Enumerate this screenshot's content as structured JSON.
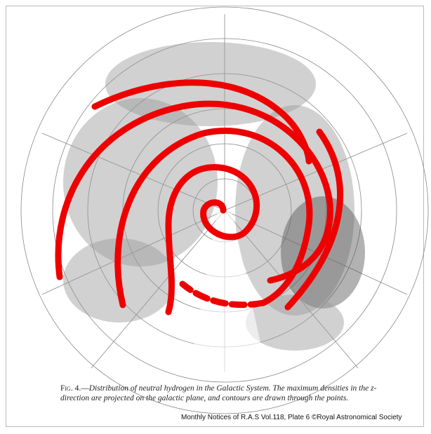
{
  "figure": {
    "caption_label": "Fig. 4.—",
    "caption_text": "Distribution of neutral hydrogen in the Galactic System.  The maximum densities in the z-direction are projected on the galactic plane, and contours are drawn through the points.",
    "credit": "Monthly Notices of R.A.S Vol.118, Plate 6 ©Royal Astronomical Society"
  }
}
